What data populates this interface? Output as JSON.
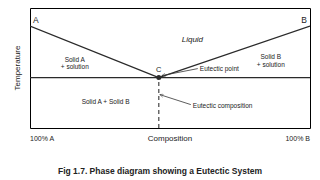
{
  "chart_data": {
    "type": "line",
    "title": "Fig 1.7. Phase diagram showing a Eutectic System",
    "xlabel": "Composition",
    "ylabel": "Temperature",
    "xlim": [
      0,
      1
    ],
    "ylim": [
      0,
      1
    ],
    "tick_labels": false,
    "series": [
      {
        "x": [
          0,
          0.46
        ],
        "values": [
          0.85,
          0.42
        ],
        "color": "#2a2a2a"
      },
      {
        "x": [
          1,
          0.46
        ],
        "values": [
          0.85,
          0.42
        ],
        "color": "#2a2a2a"
      },
      {
        "x": [
          0,
          1
        ],
        "values": [
          0.42,
          0.42
        ],
        "color": "#2a2a2a"
      },
      {
        "x": [
          0.46,
          0.46
        ],
        "values": [
          0,
          0.42
        ],
        "color": "#444444",
        "line_style": "dashed"
      },
      {
        "x": [
          0.46
        ],
        "values": [
          0.42
        ],
        "color": "#2a2a2a",
        "marker": "circle",
        "line_style": "none"
      }
    ],
    "annotations": [
      {
        "text": "Liquid"
      },
      {
        "text": "Solid A\n+ solution"
      },
      {
        "text": "Solid B\n+ solution"
      },
      {
        "text": "Solid A + Solid B"
      },
      {
        "text": "C"
      },
      {
        "text": "Eutectic point"
      },
      {
        "text": "Eutectic composition"
      },
      {
        "text": "A"
      },
      {
        "text": "B"
      },
      {
        "text": "100% A"
      },
      {
        "text": "100% B"
      }
    ]
  }
}
